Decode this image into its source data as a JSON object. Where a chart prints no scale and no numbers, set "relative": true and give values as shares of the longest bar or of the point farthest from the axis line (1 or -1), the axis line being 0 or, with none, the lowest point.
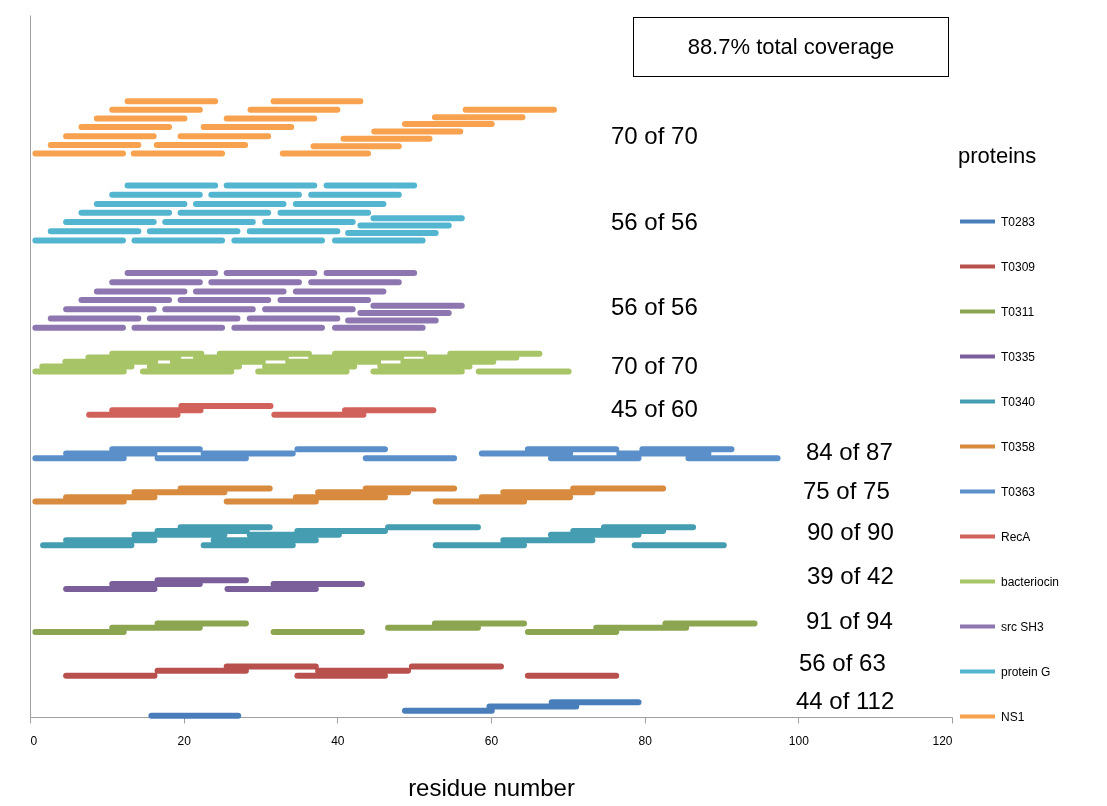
{
  "chart_data": {
    "type": "line",
    "relative": true,
    "xlabel": "residue number",
    "legend_title": "proteins",
    "legend": "right",
    "xlim": [
      0,
      120
    ],
    "xticks": [
      0,
      20,
      40,
      60,
      80,
      100,
      120
    ],
    "annotations": [
      "88.7% total coverage",
      "70 of 70",
      "56 of 56",
      "56 of 56",
      "70 of 70",
      "45 of 60",
      "84 of 87",
      "75 of 75",
      "90 of 90",
      "39 of 42",
      "91 of 94",
      "56 of 63",
      "44 of 112"
    ],
    "series": [
      {
        "name": "T0283",
        "color": "#4a7ebb",
        "x": [
          15.8,
          27.1,
          null,
          48.8,
          60.1,
          null,
          59.8,
          71.1,
          null,
          67.9,
          79.2
        ],
        "values": [
          0.002,
          0.002,
          null,
          0.01,
          0.01,
          null,
          0.017,
          0.017,
          null,
          0.024,
          0.024
        ]
      },
      {
        "name": "T0309",
        "color": "#b8514d",
        "x": [
          4.7,
          16.2,
          null,
          34.8,
          46.2,
          null,
          64.8,
          76.3,
          null,
          16.6,
          28.1,
          null,
          37.5,
          49.2,
          null,
          25.6,
          37.2,
          null,
          49.7,
          61.3
        ],
        "values": [
          0.067,
          0.067,
          null,
          0.067,
          0.067,
          null,
          0.067,
          0.067,
          null,
          0.075,
          0.075,
          null,
          0.075,
          0.075,
          null,
          0.082,
          0.082,
          null,
          0.082,
          0.082
        ]
      },
      {
        "name": "T0311",
        "color": "#8ca550",
        "x": [
          0.7,
          12.2,
          null,
          31.7,
          43.2,
          null,
          64.8,
          76.3,
          null,
          10.7,
          22.1,
          null,
          46.6,
          58.3,
          null,
          73.7,
          85.4,
          null,
          16.6,
          28.1,
          null,
          52.7,
          64.3,
          null,
          82.7,
          94.3
        ],
        "values": [
          0.138,
          0.138,
          null,
          0.138,
          0.138,
          null,
          0.138,
          0.138,
          null,
          0.145,
          0.145,
          null,
          0.145,
          0.145,
          null,
          0.145,
          0.145,
          null,
          0.152,
          0.152,
          null,
          0.152,
          0.152,
          null,
          0.152,
          0.152
        ]
      },
      {
        "name": "T0335",
        "color": "#7b5f9a",
        "x": [
          4.7,
          16.2,
          null,
          25.7,
          37.2,
          null,
          10.7,
          22.1,
          null,
          31.7,
          43.2,
          null,
          16.6,
          28.1
        ],
        "values": [
          0.208,
          0.208,
          null,
          0.208,
          0.208,
          null,
          0.216,
          0.216,
          null,
          0.216,
          0.216,
          null,
          0.222,
          0.222
        ]
      },
      {
        "name": "T0340",
        "color": "#459db2",
        "x": [
          1.7,
          13.2,
          null,
          22.6,
          34.2,
          null,
          52.8,
          64.3,
          null,
          78.7,
          90.3,
          null,
          4.7,
          16.2,
          null,
          23.9,
          37.2,
          null,
          61.6,
          73.2,
          null,
          13.6,
          25.3,
          null,
          28.6,
          40.2,
          null,
          67.8,
          79.2,
          null,
          16.6,
          28.2,
          null,
          34.8,
          46.2,
          null,
          70.7,
          82.4,
          null,
          19.6,
          31.2,
          null,
          46.6,
          58.3,
          null,
          74.7,
          86.3
        ],
        "values": [
          0.279,
          0.279,
          null,
          0.279,
          0.279,
          null,
          0.279,
          0.279,
          null,
          0.279,
          0.279,
          null,
          0.287,
          0.287,
          null,
          0.287,
          0.287,
          null,
          0.287,
          0.287,
          null,
          0.296,
          0.296,
          null,
          0.296,
          0.296,
          null,
          0.296,
          0.296,
          null,
          0.302,
          0.302,
          null,
          0.302,
          0.302,
          null,
          0.302,
          0.302,
          null,
          0.308,
          0.308,
          null,
          0.308,
          0.308,
          null,
          0.308,
          0.308
        ]
      },
      {
        "name": "T0358",
        "color": "#d88a3e",
        "x": [
          0.7,
          12.2,
          null,
          25.6,
          37.2,
          null,
          52.8,
          64.3,
          null,
          4.7,
          16.2,
          null,
          34.6,
          46.2,
          null,
          58.8,
          70.3,
          null,
          13.6,
          25.3,
          null,
          37.5,
          49.2,
          null,
          61.6,
          73.2,
          null,
          19.6,
          31.2,
          null,
          43.7,
          55.2,
          null,
          70.7,
          82.4
        ],
        "values": [
          0.35,
          0.35,
          null,
          0.35,
          0.35,
          null,
          0.35,
          0.35,
          null,
          0.357,
          0.357,
          null,
          0.357,
          0.357,
          null,
          0.357,
          0.357,
          null,
          0.365,
          0.365,
          null,
          0.365,
          0.365,
          null,
          0.365,
          0.365,
          null,
          0.371,
          0.371,
          null,
          0.371,
          0.371,
          null,
          0.371,
          0.371
        ]
      },
      {
        "name": "T0363",
        "color": "#5b8fc9",
        "x": [
          0.7,
          12.2,
          null,
          16.6,
          28.1,
          null,
          43.7,
          55.2,
          null,
          67.8,
          79.2,
          null,
          85.7,
          97.3,
          null,
          4.7,
          16.2,
          null,
          22.6,
          34.2,
          null,
          58.8,
          70.3,
          null,
          76.7,
          88.3,
          null,
          10.7,
          22.1,
          null,
          34.8,
          46.2,
          null,
          64.8,
          76.3,
          null,
          79.7,
          91.3
        ],
        "values": [
          0.42,
          0.42,
          null,
          0.42,
          0.42,
          null,
          0.42,
          0.42,
          null,
          0.42,
          0.42,
          null,
          0.42,
          0.42,
          null,
          0.428,
          0.428,
          null,
          0.428,
          0.428,
          null,
          0.428,
          0.428,
          null,
          0.428,
          0.428,
          null,
          0.435,
          0.435,
          null,
          0.435,
          0.435,
          null,
          0.435,
          0.435,
          null,
          0.435,
          0.435
        ]
      },
      {
        "name": "RecA",
        "color": "#d1615b",
        "x": [
          7.7,
          19.2,
          null,
          10.7,
          22.2,
          null,
          19.7,
          31.3,
          null,
          31.8,
          43.4,
          null,
          41,
          52.5
        ],
        "values": [
          0.491,
          0.491,
          null,
          0.498,
          0.498,
          null,
          0.505,
          0.505,
          null,
          0.491,
          0.491,
          null,
          0.498,
          0.498
        ]
      },
      {
        "name": "bacteriocin",
        "color": "#a7c466",
        "x": [
          0.7,
          12.2,
          null,
          1.6,
          13.2,
          null,
          4.6,
          16.3,
          null,
          7.6,
          19.3,
          null,
          10.7,
          22.3,
          null,
          14.7,
          26.2,
          null,
          15.6,
          27.2,
          null,
          18.6,
          30.3,
          null,
          21.6,
          33.3,
          null,
          24.7,
          36.3,
          null,
          29.7,
          41.2,
          null,
          30.6,
          42.2,
          null,
          33.6,
          45.3,
          null,
          36.6,
          48.3,
          null,
          39.7,
          51.3,
          null,
          44.7,
          56.2,
          null,
          45.6,
          57.2,
          null,
          48.6,
          60.3,
          null,
          51.6,
          63.3,
          null,
          54.7,
          66.3,
          null,
          58.4,
          70.1
        ],
        "values": [
          0.561,
          0.561,
          null,
          0.569,
          0.569,
          null,
          0.577,
          0.577,
          null,
          0.584,
          0.584,
          null,
          0.59,
          0.59,
          null,
          0.561,
          0.561,
          null,
          0.569,
          0.569,
          null,
          0.577,
          0.577,
          null,
          0.584,
          0.584,
          null,
          0.59,
          0.59,
          null,
          0.561,
          0.561,
          null,
          0.569,
          0.569,
          null,
          0.577,
          0.577,
          null,
          0.584,
          0.584,
          null,
          0.59,
          0.59,
          null,
          0.561,
          0.561,
          null,
          0.569,
          0.569,
          null,
          0.577,
          0.577,
          null,
          0.584,
          0.584,
          null,
          0.59,
          0.59,
          null,
          0.561,
          0.561
        ]
      },
      {
        "name": "src SH3",
        "color": "#8e77b0",
        "x": [
          0.7,
          12.1,
          null,
          2.7,
          14.1,
          null,
          4.7,
          16.1,
          null,
          6.7,
          18.1,
          null,
          8.7,
          20.1,
          null,
          10.7,
          22.1,
          null,
          12.7,
          24.1,
          null,
          13.6,
          25,
          null,
          15.6,
          27,
          null,
          17.6,
          29,
          null,
          19.6,
          31,
          null,
          21.6,
          33,
          null,
          23.6,
          35,
          null,
          25.6,
          37,
          null,
          26.6,
          38,
          null,
          28.6,
          40,
          null,
          30.6,
          42,
          null,
          32.6,
          44,
          null,
          34.6,
          46,
          null,
          36.6,
          48,
          null,
          38.6,
          50,
          null,
          39.7,
          51.1,
          null,
          41.4,
          52.8,
          null,
          43,
          54.5,
          null,
          44.7,
          56.2
        ],
        "values": [
          0.632,
          0.632,
          null,
          0.647,
          0.647,
          null,
          0.662,
          0.662,
          null,
          0.677,
          0.677,
          null,
          0.691,
          0.691,
          null,
          0.706,
          0.706,
          null,
          0.721,
          0.721,
          null,
          0.632,
          0.632,
          null,
          0.647,
          0.647,
          null,
          0.662,
          0.662,
          null,
          0.677,
          0.677,
          null,
          0.691,
          0.691,
          null,
          0.706,
          0.706,
          null,
          0.721,
          0.721,
          null,
          0.632,
          0.632,
          null,
          0.647,
          0.647,
          null,
          0.662,
          0.662,
          null,
          0.677,
          0.677,
          null,
          0.691,
          0.691,
          null,
          0.706,
          0.706,
          null,
          0.721,
          0.721,
          null,
          0.632,
          0.632,
          null,
          0.644,
          0.644,
          null,
          0.656,
          0.656,
          null,
          0.668,
          0.668
        ]
      },
      {
        "name": "protein G",
        "color": "#53b5cf",
        "x": [
          0.7,
          12.1,
          null,
          2.7,
          14.1,
          null,
          4.7,
          16.1,
          null,
          6.7,
          18.1,
          null,
          8.7,
          20.1,
          null,
          10.7,
          22.1,
          null,
          12.7,
          24.1,
          null,
          13.6,
          25,
          null,
          15.6,
          27,
          null,
          17.6,
          29,
          null,
          19.6,
          31,
          null,
          21.6,
          33,
          null,
          23.6,
          35,
          null,
          25.6,
          37,
          null,
          26.6,
          38,
          null,
          28.6,
          40,
          null,
          30.6,
          42,
          null,
          32.6,
          44,
          null,
          34.6,
          46,
          null,
          36.6,
          48,
          null,
          38.6,
          50,
          null,
          39.7,
          51.1,
          null,
          41.4,
          52.8,
          null,
          43,
          54.5,
          null,
          44.7,
          56.2
        ],
        "values": [
          0.774,
          0.774,
          null,
          0.789,
          0.789,
          null,
          0.804,
          0.804,
          null,
          0.819,
          0.819,
          null,
          0.833,
          0.833,
          null,
          0.848,
          0.848,
          null,
          0.863,
          0.863,
          null,
          0.774,
          0.774,
          null,
          0.789,
          0.789,
          null,
          0.804,
          0.804,
          null,
          0.819,
          0.819,
          null,
          0.833,
          0.833,
          null,
          0.848,
          0.848,
          null,
          0.863,
          0.863,
          null,
          0.774,
          0.774,
          null,
          0.789,
          0.789,
          null,
          0.804,
          0.804,
          null,
          0.819,
          0.819,
          null,
          0.833,
          0.833,
          null,
          0.848,
          0.848,
          null,
          0.863,
          0.863,
          null,
          0.774,
          0.774,
          null,
          0.786,
          0.786,
          null,
          0.798,
          0.798,
          null,
          0.81,
          0.81
        ]
      },
      {
        "name": "NS1",
        "color": "#f8a24f",
        "x": [
          0.7,
          12.1,
          null,
          2.7,
          14.1,
          null,
          4.7,
          16.1,
          null,
          6.7,
          18.1,
          null,
          8.7,
          20.1,
          null,
          10.7,
          22.1,
          null,
          12.7,
          24.1,
          null,
          13.5,
          25,
          null,
          16.5,
          28,
          null,
          19.6,
          31,
          null,
          22.6,
          34,
          null,
          25.6,
          37,
          null,
          28.7,
          40,
          null,
          31.7,
          43,
          null,
          32.9,
          44,
          null,
          36.9,
          48,
          null,
          40.8,
          52,
          null,
          44.8,
          56,
          null,
          48.8,
          60.1,
          null,
          52.7,
          64.1,
          null,
          56.7,
          68.2
        ],
        "values": [
          0.915,
          0.915,
          null,
          0.929,
          0.929,
          null,
          0.943,
          0.943,
          null,
          0.958,
          0.958,
          null,
          0.972,
          0.972,
          null,
          0.986,
          0.986,
          null,
          1.0,
          1.0,
          null,
          0.915,
          0.915,
          null,
          0.929,
          0.929,
          null,
          0.943,
          0.943,
          null,
          0.958,
          0.958,
          null,
          0.972,
          0.972,
          null,
          0.986,
          0.986,
          null,
          1.0,
          1.0,
          null,
          0.915,
          0.915,
          null,
          0.927,
          0.927,
          null,
          0.939,
          0.939,
          null,
          0.951,
          0.951,
          null,
          0.963,
          0.963,
          null,
          0.974,
          0.974,
          null,
          0.986,
          0.986
        ]
      }
    ]
  }
}
